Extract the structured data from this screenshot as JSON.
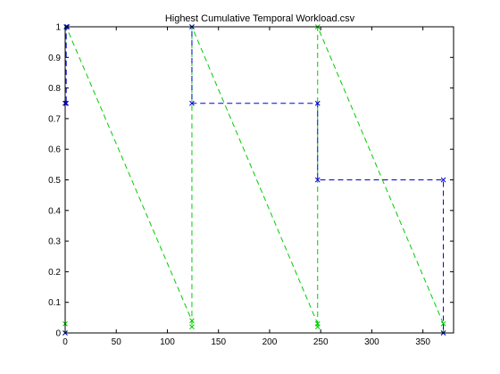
{
  "chart_data": {
    "type": "line",
    "title": "Highest Cumulative Temporal Workload.csv",
    "xlabel": "",
    "ylabel": "",
    "xlim": [
      0,
      380
    ],
    "ylim": [
      0,
      1
    ],
    "x_ticks": [
      0,
      50,
      100,
      150,
      200,
      250,
      300,
      350
    ],
    "y_ticks": [
      0,
      0.1,
      0.2,
      0.3,
      0.4,
      0.5,
      0.6,
      0.7,
      0.8,
      0.9,
      1
    ],
    "grid": false,
    "legend": "none",
    "series": [
      {
        "color": "#00cc00",
        "line_style": "dashed",
        "marker": "x",
        "points": [
          [
            0,
            0
          ],
          [
            0,
            0.03
          ],
          [
            0,
            0.75
          ],
          [
            1,
            1
          ],
          [
            124,
            0.04
          ],
          [
            124,
            0.02
          ],
          [
            124,
            1
          ],
          [
            247,
            0.03
          ],
          [
            247,
            0.02
          ],
          [
            247,
            1
          ],
          [
            370,
            0.03
          ],
          [
            370,
            0
          ]
        ]
      },
      {
        "color": "#0000cc",
        "line_style": "dashed",
        "marker": "x",
        "points": [
          [
            0,
            0
          ],
          [
            0,
            0.75
          ],
          [
            1,
            0.75
          ],
          [
            1,
            1
          ],
          [
            2,
            1
          ],
          [
            124,
            1
          ],
          [
            124,
            0.75
          ],
          [
            247,
            0.75
          ],
          [
            247,
            0.5
          ],
          [
            370,
            0.5
          ],
          [
            370,
            0
          ]
        ]
      }
    ]
  }
}
